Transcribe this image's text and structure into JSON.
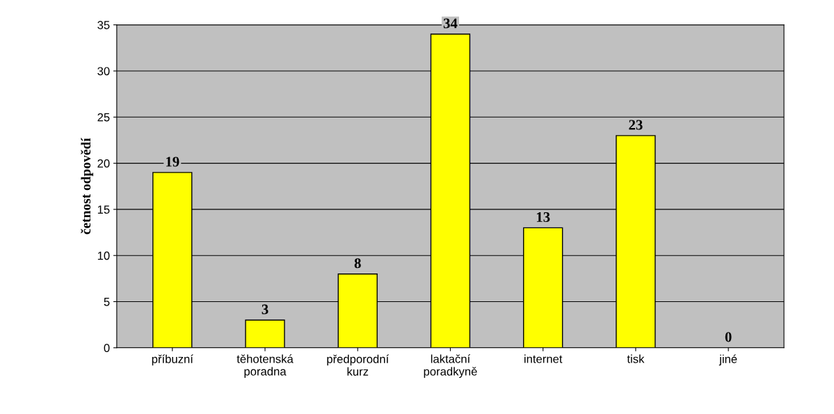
{
  "chart_data": {
    "type": "bar",
    "ylabel": "četnost odpovědí",
    "categories": [
      "příbuzní",
      "těhotenská\nporadna",
      "předporodní\nkurz",
      "laktační\nporadkyně",
      "internet",
      "tisk",
      "jiné"
    ],
    "values": [
      19,
      3,
      8,
      34,
      13,
      23,
      0
    ],
    "color": "#ffff00",
    "ylim": [
      0,
      35
    ],
    "yticks": [
      0,
      5,
      10,
      15,
      20,
      25,
      30,
      35
    ],
    "grid": "y",
    "data_labels": true
  }
}
